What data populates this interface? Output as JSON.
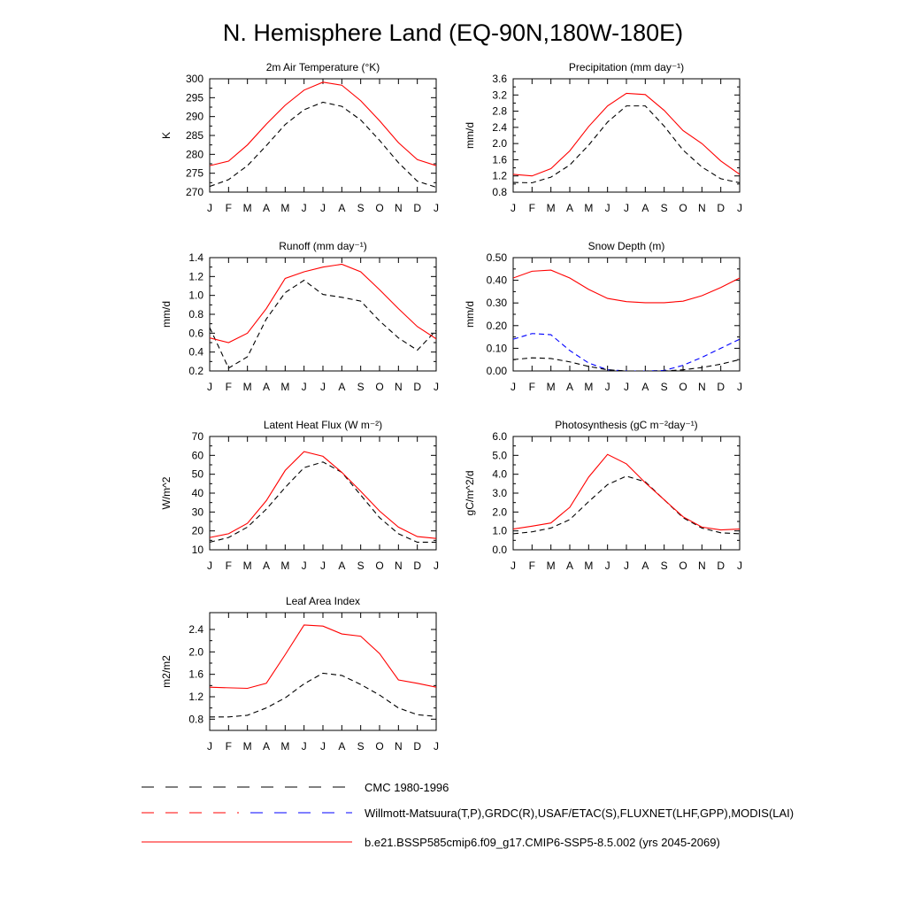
{
  "page": {
    "title": "N. Hemisphere Land (EQ-90N,180W-180E)"
  },
  "legend": {
    "items": [
      {
        "label": "CMC 1980-1996",
        "style": "dashed-black"
      },
      {
        "label": "Willmott-Matsuura(T,P),GRDC(R),USAF/ETAC(S),FLUXNET(LHF,GPP),MODIS(LAI)",
        "style": "dashed-mixed"
      },
      {
        "label": "b.e21.BSSP585cmip6.f09_g17.CMIP6-SSP5-8.5.002 (yrs 2045-2069)",
        "style": "solid-red"
      }
    ]
  },
  "colors": {
    "model": "#ff0000",
    "obs": "#000000",
    "cmc": "#0000ff",
    "axis": "#000000"
  },
  "chart_data": [
    {
      "type": "line",
      "title": "2m Air Temperature",
      "title_unit": "(°K)",
      "ylabel": "K",
      "categories": [
        "J",
        "F",
        "M",
        "A",
        "M",
        "J",
        "J",
        "A",
        "S",
        "O",
        "N",
        "D",
        "J"
      ],
      "ylim": [
        270,
        300
      ],
      "yticks": [
        270,
        275,
        280,
        285,
        290,
        295,
        300
      ],
      "ytick_labels": [
        "270",
        "275",
        "280",
        "285",
        "290",
        "295",
        "300"
      ],
      "series": [
        {
          "key": "model",
          "values": [
            277.0,
            278.2,
            282.5,
            288.0,
            293.0,
            297.0,
            299.1,
            298.3,
            294.2,
            288.9,
            283.1,
            278.6,
            277.0
          ]
        },
        {
          "key": "obs",
          "values": [
            271.5,
            273.3,
            277.0,
            282.3,
            287.9,
            291.8,
            293.8,
            292.7,
            289.1,
            283.7,
            277.8,
            272.9,
            271.3
          ]
        }
      ]
    },
    {
      "type": "line",
      "title": "Precipitation",
      "title_unit": "(mm day⁻¹)",
      "ylabel": "mm/d",
      "categories": [
        "J",
        "F",
        "M",
        "A",
        "M",
        "J",
        "J",
        "A",
        "S",
        "O",
        "N",
        "D",
        "J"
      ],
      "ylim": [
        0.8,
        3.6
      ],
      "yticks": [
        0.8,
        1.2,
        1.6,
        2.0,
        2.4,
        2.8,
        3.2,
        3.6
      ],
      "ytick_labels": [
        "0.8",
        "1.2",
        "1.6",
        "2.0",
        "2.4",
        "2.8",
        "3.2",
        "3.6"
      ],
      "series": [
        {
          "key": "model",
          "values": [
            1.24,
            1.2,
            1.38,
            1.82,
            2.42,
            2.93,
            3.24,
            3.21,
            2.82,
            2.32,
            2.0,
            1.57,
            1.24
          ]
        },
        {
          "key": "obs",
          "values": [
            1.04,
            1.03,
            1.17,
            1.47,
            1.96,
            2.53,
            2.93,
            2.93,
            2.43,
            1.84,
            1.42,
            1.13,
            1.03
          ]
        }
      ]
    },
    {
      "type": "line",
      "title": "Runoff",
      "title_unit": "(mm day⁻¹)",
      "ylabel": "mm/d",
      "categories": [
        "J",
        "F",
        "M",
        "A",
        "M",
        "J",
        "J",
        "A",
        "S",
        "O",
        "N",
        "D",
        "J"
      ],
      "ylim": [
        0.2,
        1.4
      ],
      "yticks": [
        0.2,
        0.4,
        0.6,
        0.8,
        1.0,
        1.2,
        1.4
      ],
      "ytick_labels": [
        "0.2",
        "0.4",
        "0.6",
        "0.8",
        "1.0",
        "1.2",
        "1.4"
      ],
      "series": [
        {
          "key": "model",
          "values": [
            0.55,
            0.5,
            0.6,
            0.86,
            1.18,
            1.25,
            1.3,
            1.33,
            1.25,
            1.06,
            0.86,
            0.67,
            0.54
          ]
        },
        {
          "key": "obs",
          "values": [
            0.66,
            0.23,
            0.35,
            0.75,
            1.03,
            1.16,
            1.01,
            0.98,
            0.94,
            0.73,
            0.55,
            0.42,
            0.63
          ]
        }
      ]
    },
    {
      "type": "line",
      "title": "Snow Depth",
      "title_unit": "(m)",
      "ylabel": "mm/d",
      "categories": [
        "J",
        "F",
        "M",
        "A",
        "M",
        "J",
        "J",
        "A",
        "S",
        "O",
        "N",
        "D",
        "J"
      ],
      "ylim": [
        0.0,
        0.5
      ],
      "yticks": [
        0.0,
        0.1,
        0.2,
        0.3,
        0.4,
        0.5
      ],
      "ytick_labels": [
        "0.00",
        "0.10",
        "0.20",
        "0.30",
        "0.40",
        "0.50"
      ],
      "series": [
        {
          "key": "model",
          "values": [
            0.41,
            0.44,
            0.445,
            0.41,
            0.36,
            0.32,
            0.306,
            0.301,
            0.301,
            0.308,
            0.332,
            0.368,
            0.41
          ]
        },
        {
          "key": "cmc",
          "values": [
            0.14,
            0.165,
            0.16,
            0.09,
            0.035,
            0.005,
            0.0,
            0.0,
            0.002,
            0.025,
            0.06,
            0.1,
            0.14
          ]
        },
        {
          "key": "obs",
          "values": [
            0.05,
            0.058,
            0.055,
            0.04,
            0.02,
            0.005,
            0.0,
            0.0,
            0.0,
            0.005,
            0.015,
            0.03,
            0.05
          ]
        }
      ]
    },
    {
      "type": "line",
      "title": "Latent Heat Flux",
      "title_unit": "(W m⁻²)",
      "ylabel": "W/m^2",
      "categories": [
        "J",
        "F",
        "M",
        "A",
        "M",
        "J",
        "J",
        "A",
        "S",
        "O",
        "N",
        "D",
        "J"
      ],
      "ylim": [
        10,
        70
      ],
      "yticks": [
        10,
        20,
        30,
        40,
        50,
        60,
        70
      ],
      "ytick_labels": [
        "10",
        "20",
        "30",
        "40",
        "50",
        "60",
        "70"
      ],
      "series": [
        {
          "key": "model",
          "values": [
            16.5,
            18.5,
            24.0,
            36.0,
            52.0,
            62.0,
            59.5,
            51.0,
            41.0,
            30.5,
            22.0,
            17.0,
            16.0
          ]
        },
        {
          "key": "obs",
          "values": [
            14.0,
            16.5,
            22.0,
            31.5,
            43.0,
            53.5,
            56.5,
            51.0,
            39.0,
            27.0,
            18.5,
            14.0,
            14.0
          ]
        }
      ]
    },
    {
      "type": "line",
      "title": "Photosynthesis",
      "title_unit": "(gC m⁻²day⁻¹)",
      "ylabel": "gC/m^2/d",
      "categories": [
        "J",
        "F",
        "M",
        "A",
        "M",
        "J",
        "J",
        "A",
        "S",
        "O",
        "N",
        "D",
        "J"
      ],
      "ylim": [
        0.0,
        6.0
      ],
      "yticks": [
        0,
        1,
        2,
        3,
        4,
        5,
        6
      ],
      "ytick_labels": [
        "0.0",
        "1.0",
        "2.0",
        "3.0",
        "4.0",
        "5.0",
        "6.0"
      ],
      "series": [
        {
          "key": "model",
          "values": [
            1.1,
            1.25,
            1.42,
            2.25,
            3.85,
            5.05,
            4.55,
            3.55,
            2.65,
            1.75,
            1.2,
            1.05,
            1.1
          ]
        },
        {
          "key": "obs",
          "values": [
            0.85,
            0.95,
            1.15,
            1.6,
            2.55,
            3.45,
            3.9,
            3.6,
            2.65,
            1.7,
            1.15,
            0.9,
            0.85
          ]
        }
      ]
    },
    {
      "type": "line",
      "title": "Leaf Area Index",
      "title_unit": "",
      "ylabel": "m2/m2",
      "categories": [
        "J",
        "F",
        "M",
        "A",
        "M",
        "J",
        "J",
        "A",
        "S",
        "O",
        "N",
        "D",
        "J"
      ],
      "ylim": [
        0.6,
        2.7
      ],
      "yticks": [
        0.8,
        1.2,
        1.6,
        2.0,
        2.4
      ],
      "ytick_labels": [
        "0.8",
        "1.2",
        "1.6",
        "2.0",
        "2.4"
      ],
      "series": [
        {
          "key": "model",
          "values": [
            1.37,
            1.36,
            1.35,
            1.44,
            1.95,
            2.48,
            2.46,
            2.32,
            2.28,
            1.97,
            1.5,
            1.44,
            1.37
          ]
        },
        {
          "key": "obs",
          "values": [
            0.84,
            0.84,
            0.87,
            1.0,
            1.18,
            1.43,
            1.62,
            1.58,
            1.42,
            1.23,
            1.0,
            0.88,
            0.85
          ]
        }
      ]
    }
  ]
}
